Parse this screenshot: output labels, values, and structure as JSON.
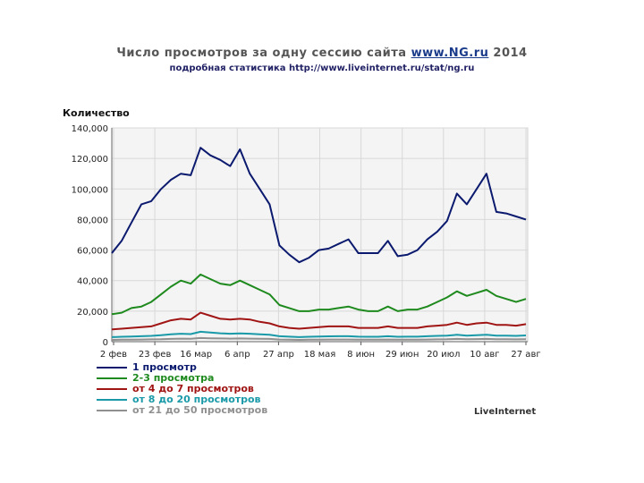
{
  "header": {
    "title_prefix": "Число просмотров за одну сессию сайта",
    "title_link": "www.NG.ru",
    "title_suffix": "2014",
    "subtitle": "подробная статистика http://www.liveinternet.ru/stat/ng.ru"
  },
  "brand": "LiveInternet",
  "chart_data": {
    "type": "line",
    "ylabel": "Количество",
    "ylim": [
      0,
      140000
    ],
    "yticks": [
      0,
      20000,
      40000,
      60000,
      80000,
      100000,
      120000,
      140000
    ],
    "ytick_labels": [
      "0",
      "20,000",
      "40,000",
      "60,000",
      "80,000",
      "100,000",
      "120,000",
      "140,000"
    ],
    "x_tick_labels": [
      "2 фев",
      "23 фев",
      "16 мар",
      "6 апр",
      "27 апр",
      "18 мая",
      "8 июн",
      "29 июн",
      "20 июл",
      "10 авг",
      "27 авг"
    ],
    "grid": true,
    "legend_position": "bottom-left",
    "series": [
      {
        "name": "1 просмотр",
        "color": "#0b1a6e",
        "values": [
          58000,
          66000,
          78000,
          90000,
          92000,
          100000,
          106000,
          110000,
          109000,
          127000,
          122000,
          119000,
          115000,
          126000,
          110000,
          100000,
          90000,
          63000,
          57000,
          52000,
          55000,
          60000,
          61000,
          64000,
          67000,
          58000,
          58000,
          58000,
          66000,
          56000,
          57000,
          60000,
          67000,
          72000,
          79000,
          97000,
          90000,
          100000,
          110000,
          85000,
          84000,
          82000,
          80000
        ]
      },
      {
        "name": "2-3 просмотра",
        "color": "#1e8a1e",
        "values": [
          18000,
          19000,
          22000,
          23000,
          26000,
          31000,
          36000,
          40000,
          38000,
          44000,
          41000,
          38000,
          37000,
          40000,
          37000,
          34000,
          31000,
          24000,
          22000,
          20000,
          20000,
          21000,
          21000,
          22000,
          23000,
          21000,
          20000,
          20000,
          23000,
          20000,
          21000,
          21000,
          23000,
          26000,
          29000,
          33000,
          30000,
          32000,
          34000,
          30000,
          28000,
          26000,
          28000
        ]
      },
      {
        "name": "от 4 до 7 просмотров",
        "color": "#a01414",
        "values": [
          8000,
          8500,
          9000,
          9500,
          10000,
          12000,
          14000,
          15000,
          14500,
          19000,
          17000,
          15000,
          14500,
          15000,
          14500,
          13000,
          12000,
          10000,
          9000,
          8500,
          9000,
          9500,
          10000,
          10000,
          10000,
          9000,
          9000,
          9000,
          10000,
          9000,
          9000,
          9000,
          10000,
          10500,
          11000,
          12500,
          11000,
          12000,
          12500,
          11000,
          11000,
          10500,
          11500
        ]
      },
      {
        "name": "от 8 до 20 просмотров",
        "color": "#1a9aa8",
        "values": [
          3000,
          3200,
          3400,
          3600,
          3800,
          4200,
          4800,
          5200,
          5000,
          6500,
          6000,
          5500,
          5200,
          5400,
          5200,
          4800,
          4500,
          3600,
          3300,
          3000,
          3200,
          3400,
          3500,
          3600,
          3600,
          3300,
          3200,
          3200,
          3600,
          3200,
          3300,
          3300,
          3600,
          3800,
          4000,
          4500,
          4000,
          4300,
          4500,
          4000,
          4000,
          3800,
          4100
        ]
      },
      {
        "name": "от 21 до 50 просмотров",
        "color": "#909090",
        "values": [
          1200,
          1300,
          1350,
          1400,
          1500,
          1600,
          1800,
          2000,
          1900,
          2400,
          2200,
          2100,
          2000,
          2100,
          2000,
          1900,
          1800,
          1400,
          1300,
          1200,
          1300,
          1300,
          1400,
          1400,
          1400,
          1300,
          1300,
          1300,
          1400,
          1300,
          1300,
          1300,
          1400,
          1500,
          1600,
          1800,
          1600,
          1700,
          1800,
          1600,
          1600,
          1500,
          1600
        ]
      }
    ]
  }
}
